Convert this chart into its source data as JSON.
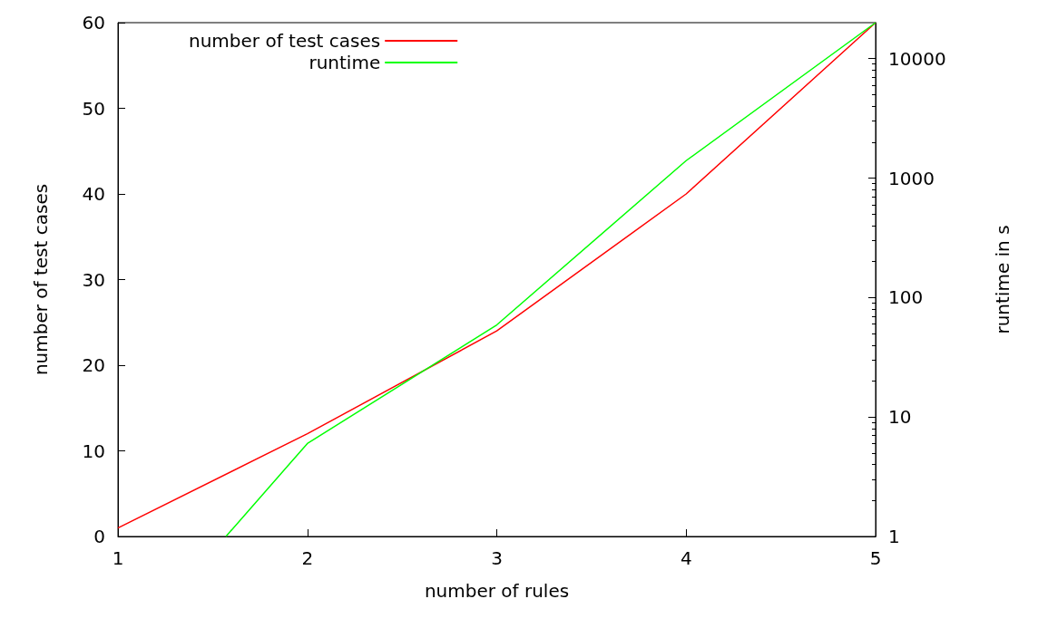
{
  "chart_data": {
    "type": "line",
    "xlabel": "number of rules",
    "ylabel": "number of test cases",
    "y2label": "runtime in s",
    "x": [
      1,
      2,
      3,
      4,
      5
    ],
    "series": [
      {
        "name": "number of test cases",
        "color": "#ff0000",
        "values": [
          1,
          12,
          24,
          40,
          60
        ]
      },
      {
        "name": "runtime",
        "color": "#00ff00",
        "axis": "y2",
        "x": [
          1.57,
          2,
          3,
          4,
          5
        ],
        "values": [
          1,
          6,
          59,
          1400,
          20000
        ]
      }
    ],
    "xlim": [
      1,
      5
    ],
    "xticks": [
      1,
      2,
      3,
      4,
      5
    ],
    "ylim": [
      0,
      60
    ],
    "yticks": [
      0,
      10,
      20,
      30,
      40,
      50,
      60
    ],
    "y2lim": [
      1,
      20000
    ],
    "y2ticks": [
      1,
      10,
      100,
      1000,
      10000
    ],
    "log": "y2",
    "grid": false,
    "legend": "top left",
    "marker": "none",
    "line_style": "solid"
  }
}
